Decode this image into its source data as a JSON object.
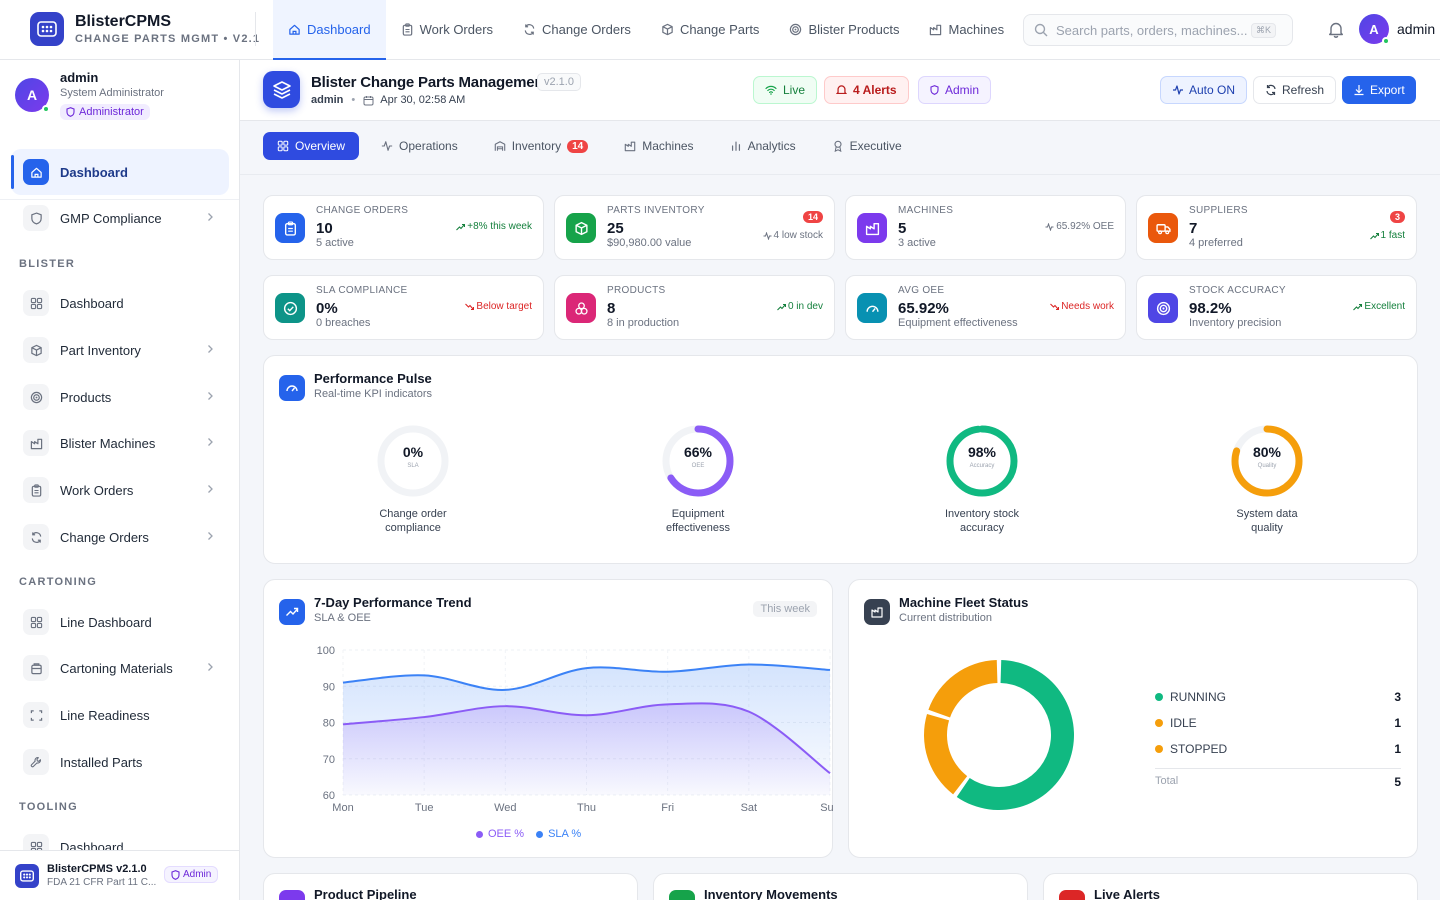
{
  "brand": {
    "name": "BlisterCPMS",
    "subtitle": "CHANGE PARTS MGMT • V2.1"
  },
  "topnav": [
    {
      "label": "Dashboard",
      "icon": "home-icon",
      "active": true
    },
    {
      "label": "Work Orders",
      "icon": "clipboard-icon"
    },
    {
      "label": "Change Orders",
      "icon": "refresh-icon"
    },
    {
      "label": "Change Parts",
      "icon": "box-icon"
    },
    {
      "label": "Blister Products",
      "icon": "target-icon"
    },
    {
      "label": "Machines",
      "icon": "factory-icon"
    }
  ],
  "search": {
    "placeholder": "Search parts, orders, machines...",
    "shortcut": "⌘K"
  },
  "user": {
    "initial": "A",
    "name": "admin",
    "role": "System Administrator",
    "badge": "Administrator"
  },
  "sidebar": {
    "top": [
      {
        "label": "Dashboard",
        "icon": "home-icon",
        "active": true
      },
      {
        "label": "GMP Compliance",
        "icon": "shield-icon",
        "chevron": true
      }
    ],
    "sections": [
      {
        "title": "BLISTER",
        "items": [
          {
            "label": "Dashboard",
            "icon": "grid-icon"
          },
          {
            "label": "Part Inventory",
            "icon": "box-icon",
            "chevron": true
          },
          {
            "label": "Products",
            "icon": "target-icon",
            "chevron": true
          },
          {
            "label": "Blister Machines",
            "icon": "factory-icon",
            "chevron": true
          },
          {
            "label": "Work Orders",
            "icon": "clipboard-icon",
            "chevron": true
          },
          {
            "label": "Change Orders",
            "icon": "refresh-icon",
            "chevron": true
          }
        ]
      },
      {
        "title": "CARTONING",
        "items": [
          {
            "label": "Line Dashboard",
            "icon": "grid-icon"
          },
          {
            "label": "Cartoning Materials",
            "icon": "package-icon",
            "chevron": true
          },
          {
            "label": "Line Readiness",
            "icon": "scan-icon"
          },
          {
            "label": "Installed Parts",
            "icon": "wrench-icon"
          }
        ]
      },
      {
        "title": "TOOLING",
        "items": [
          {
            "label": "Dashboard",
            "icon": "grid-icon"
          }
        ]
      }
    ],
    "footer": {
      "name": "BlisterCPMS v2.1.0",
      "sub": "FDA 21 CFR Part 11 C...",
      "badge": "Admin"
    }
  },
  "header": {
    "title": "Blister Change Parts Management",
    "version": "v2.1.0",
    "user": "admin",
    "datetime": "Apr 30, 02:58 AM",
    "chips": {
      "live": "Live",
      "alerts": "4 Alerts",
      "admin": "Admin"
    },
    "buttons": {
      "auto": "Auto ON",
      "refresh": "Refresh",
      "export": "Export"
    }
  },
  "tabs": [
    {
      "label": "Overview",
      "icon": "grid-icon",
      "active": true
    },
    {
      "label": "Operations",
      "icon": "activity-icon"
    },
    {
      "label": "Inventory",
      "icon": "warehouse-icon",
      "count": "14"
    },
    {
      "label": "Machines",
      "icon": "factory-icon"
    },
    {
      "label": "Analytics",
      "icon": "bar-chart-icon"
    },
    {
      "label": "Executive",
      "icon": "award-icon"
    }
  ],
  "kpis": [
    {
      "label": "CHANGE ORDERS",
      "value": "10",
      "sub": "5 active",
      "trend": "+8% this week",
      "trend_dir": "up",
      "icon": "clipboard-icon",
      "color": "#2563eb"
    },
    {
      "label": "PARTS INVENTORY",
      "value": "25",
      "sub": "$90,980.00 value",
      "trend": "4 low stock",
      "trend_dir": "neutral",
      "badge": "14",
      "icon": "box-icon",
      "color": "#16a34a"
    },
    {
      "label": "MACHINES",
      "value": "5",
      "sub": "3 active",
      "trend": "65.92% OEE",
      "trend_dir": "neutral",
      "icon": "factory-icon",
      "color": "#7c3aed"
    },
    {
      "label": "SUPPLIERS",
      "value": "7",
      "sub": "4 preferred",
      "trend": "1 fast",
      "trend_dir": "up",
      "badge": "3",
      "icon": "truck-icon",
      "color": "#ea580c"
    },
    {
      "label": "SLA COMPLIANCE",
      "value": "0%",
      "sub": "0 breaches",
      "trend": "Below target",
      "trend_dir": "down",
      "icon": "check-circle-icon",
      "color": "#0d9488"
    },
    {
      "label": "PRODUCTS",
      "value": "8",
      "sub": "8 in production",
      "trend": "0 in dev",
      "trend_dir": "up",
      "icon": "boxes-icon",
      "color": "#db2777"
    },
    {
      "label": "AVG OEE",
      "value": "65.92%",
      "sub": "Equipment effectiveness",
      "trend": "Needs work",
      "trend_dir": "down",
      "icon": "gauge-icon",
      "color": "#0891b2"
    },
    {
      "label": "STOCK ACCURACY",
      "value": "98.2%",
      "sub": "Inventory precision",
      "trend": "Excellent",
      "trend_dir": "up",
      "icon": "target-icon",
      "color": "#4f46e5"
    }
  ],
  "pulse": {
    "title": "Performance Pulse",
    "subtitle": "Real-time KPI indicators",
    "gauges": [
      {
        "value": "0%",
        "fraction": 0.0,
        "sub": "SLA",
        "label": "Change order compliance",
        "color": "#3b82f6"
      },
      {
        "value": "66%",
        "fraction": 0.66,
        "sub": "OEE",
        "label": "Equipment effectiveness",
        "color": "#8b5cf6"
      },
      {
        "value": "98%",
        "fraction": 0.98,
        "sub": "Accuracy",
        "label": "Inventory stock accuracy",
        "color": "#10b981"
      },
      {
        "value": "80%",
        "fraction": 0.8,
        "sub": "Quality",
        "label": "System data quality",
        "color": "#f59e0b"
      }
    ]
  },
  "trend_card": {
    "title": "7-Day Performance Trend",
    "subtitle": "SLA & OEE",
    "badge": "This week"
  },
  "fleet_card": {
    "title": "Machine Fleet Status",
    "subtitle": "Current distribution",
    "total_label": "Total",
    "total": "5"
  },
  "bottom_cards": [
    "Product Pipeline",
    "Inventory Movements",
    "Live Alerts"
  ],
  "chart_data": [
    {
      "type": "area",
      "x": [
        "Mon",
        "Tue",
        "Wed",
        "Thu",
        "Fri",
        "Sat",
        "Sun"
      ],
      "ylim": [
        60,
        100
      ],
      "yticks": [
        60,
        70,
        80,
        90,
        100
      ],
      "grid": true,
      "legend": "bottom",
      "series": [
        {
          "name": "OEE %",
          "values": [
            79.5,
            81.5,
            84.5,
            82,
            85,
            83,
            66
          ],
          "color": "#8b5cf6"
        },
        {
          "name": "SLA %",
          "values": [
            91,
            93,
            89,
            95,
            94,
            96,
            94.5
          ],
          "color": "#3b82f6"
        }
      ]
    },
    {
      "type": "pie",
      "categories": [
        "RUNNING",
        "IDLE",
        "STOPPED"
      ],
      "values": [
        3,
        1,
        1
      ],
      "colors": [
        "#10b981",
        "#f59e0b",
        "#f59e0b"
      ],
      "legend": "right"
    }
  ]
}
